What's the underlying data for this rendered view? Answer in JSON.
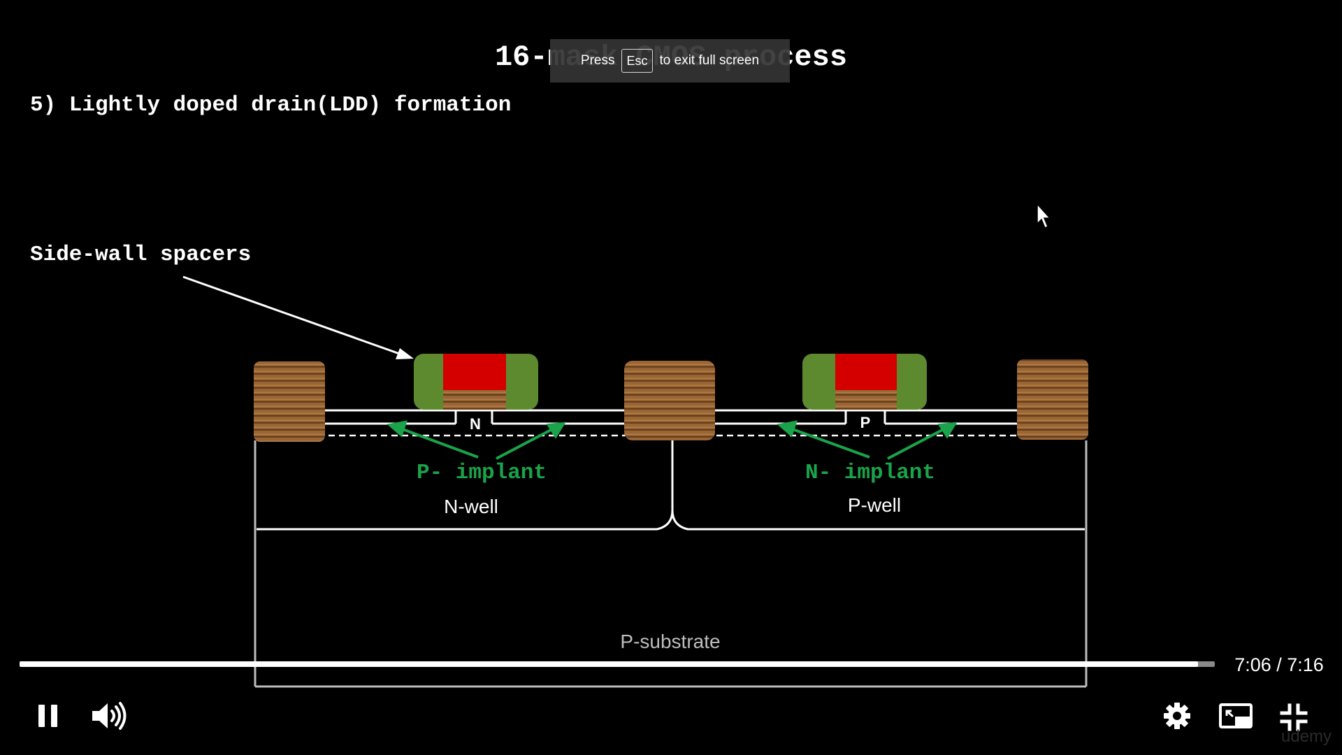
{
  "slide": {
    "title": "16-mask CMOS process",
    "subtitle": "5) Lightly doped drain(LDD) formation",
    "spacer_label": "Side-wall spacers",
    "nmos_region_letter": "N",
    "pmos_region_letter": "P",
    "left_implant_label": "P- implant",
    "right_implant_label": "N- implant",
    "left_well_label": "N-well",
    "right_well_label": "P-well",
    "substrate_label": "P-substrate",
    "colors": {
      "gate_poly": "#d40000",
      "spacer": "#5d8a2f",
      "implant_text": "#1aa34a",
      "oxide_wood": "#8a5a2b"
    }
  },
  "toast": {
    "press": "Press",
    "key": "Esc",
    "message": "to exit full screen"
  },
  "player": {
    "progress_fraction": 0.986,
    "time": "7:06 / 7:16",
    "watermark": "udemy"
  }
}
